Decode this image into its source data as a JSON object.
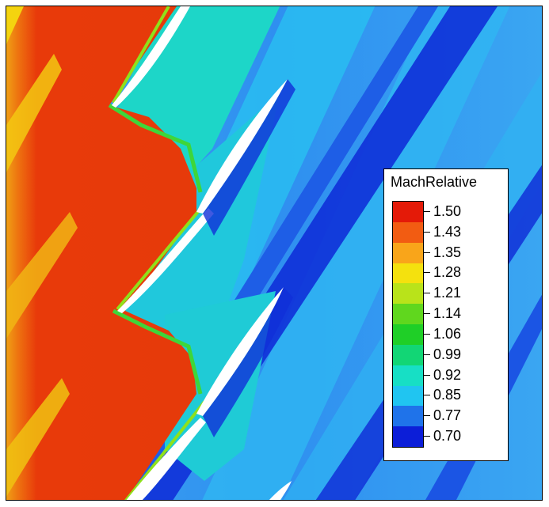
{
  "legend": {
    "title": "MachRelative",
    "levels": [
      "1.50",
      "1.43",
      "1.35",
      "1.28",
      "1.21",
      "1.14",
      "1.06",
      "0.99",
      "0.92",
      "0.85",
      "0.77",
      "0.70"
    ],
    "colors": [
      "#e41a08",
      "#f25c12",
      "#f9a51a",
      "#f4e10e",
      "#b9e31a",
      "#60d71e",
      "#1fcf27",
      "#12d675",
      "#17dfc5",
      "#20c5f1",
      "#1f73ea",
      "#0c1ed8"
    ]
  }
}
